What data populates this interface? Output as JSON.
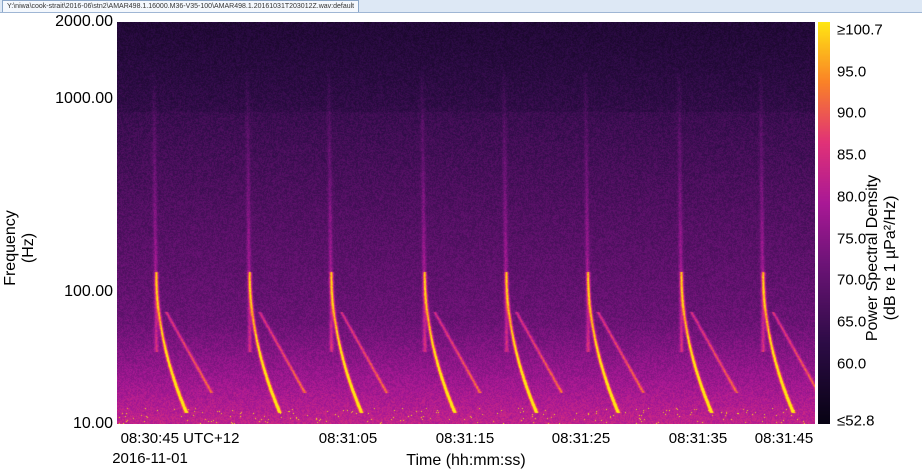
{
  "window": {
    "tab_title": "Y:\\niwa\\cook-strait\\2016-06\\stn2\\AMAR498.1.16000.M36-V35-100\\AMAR498.1.20161031T203012Z.wav:default"
  },
  "chart_data": {
    "type": "heatmap",
    "ylabel": "Frequency\n(Hz)",
    "ylabel_line1": "Frequency",
    "ylabel_line2": "(Hz)",
    "xlabel": "Time (hh:mm:ss)",
    "y_ticks": [
      "2000.00",
      "1000.00",
      "100.00",
      "10.00"
    ],
    "ylim": [
      10,
      2000
    ],
    "x_ticks": [
      "08:30:45 UTC+12",
      "08:31:05",
      "08:31:15",
      "08:31:25",
      "08:31:35",
      "08:31:45"
    ],
    "x_date": "2016-11-01",
    "colorbar": {
      "label_line1": "Power Spectral Density",
      "label_line2": "(dB re 1 µPa²/Hz)",
      "ticks": [
        "≥100.7",
        "95.0",
        "90.0",
        "85.0",
        "80.0",
        "75.0",
        "70.0",
        "65.0",
        "60.0",
        "≤52.8"
      ],
      "range": [
        52.8,
        100.7
      ],
      "colormap": "magma"
    },
    "call_times_approx": [
      "08:30:48",
      "08:30:56",
      "08:31:03",
      "08:31:11",
      "08:31:18",
      "08:31:25",
      "08:31:33",
      "08:31:40"
    ]
  }
}
